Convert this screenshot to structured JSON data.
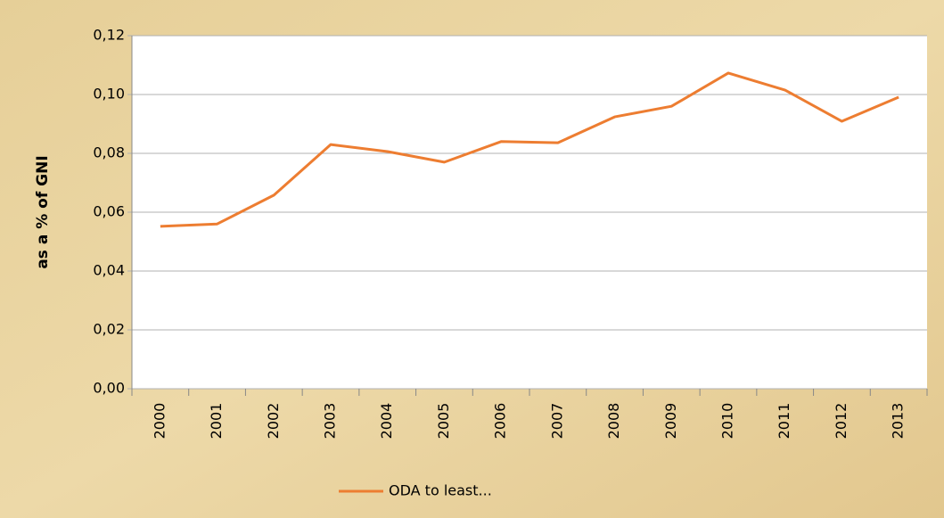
{
  "chart_data": {
    "type": "line",
    "y_label": "as a % of GNI",
    "categories": [
      "2000",
      "2001",
      "2002",
      "2003",
      "2004",
      "2005",
      "2006",
      "2007",
      "2008",
      "2009",
      "2010",
      "2011",
      "2012",
      "2013"
    ],
    "series": [
      {
        "name": "ODA to least...",
        "color": "#ed7d31",
        "values": [
          0.0552,
          0.056,
          0.0658,
          0.083,
          0.0806,
          0.077,
          0.084,
          0.0836,
          0.0924,
          0.096,
          0.1073,
          0.1015,
          0.0909,
          0.0991
        ]
      }
    ],
    "ylim": [
      0,
      0.12
    ],
    "yticks": [
      {
        "value": 0,
        "label": "0,00"
      },
      {
        "value": 0.02,
        "label": "0,02"
      },
      {
        "value": 0.04,
        "label": "0,04"
      },
      {
        "value": 0.06,
        "label": "0,06"
      },
      {
        "value": 0.08,
        "label": "0,08"
      },
      {
        "value": 0.1,
        "label": "0,10"
      },
      {
        "value": 0.12,
        "label": "0,12"
      }
    ],
    "grid": true,
    "legend": "bottom"
  }
}
